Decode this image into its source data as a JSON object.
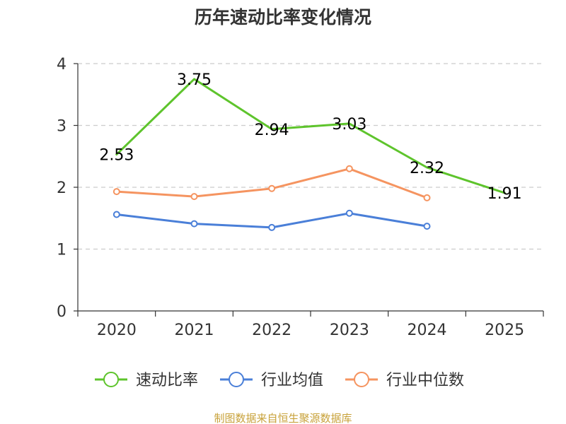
{
  "chart_data": {
    "type": "line",
    "title": "历年速动比率变化情况",
    "categories": [
      "2020",
      "2021",
      "2022",
      "2023",
      "2024",
      "2025"
    ],
    "ylim": [
      0,
      4
    ],
    "yticks": [
      0,
      1,
      2,
      3,
      4
    ],
    "grid": true,
    "legend_position": "bottom",
    "series": [
      {
        "name": "速动比率",
        "color": "#5ec42c",
        "values": [
          2.53,
          3.75,
          2.94,
          3.03,
          2.32,
          1.91
        ],
        "labels": [
          "2.53",
          "3.75",
          "2.94",
          "3.03",
          "2.32",
          "1.91"
        ],
        "show_labels": true,
        "markers": false
      },
      {
        "name": "行业均值",
        "color": "#4a7fd8",
        "values": [
          1.56,
          1.41,
          1.35,
          1.58,
          1.37,
          null
        ],
        "show_labels": false,
        "markers": true
      },
      {
        "name": "行业中位数",
        "color": "#f59460",
        "values": [
          1.93,
          1.85,
          1.98,
          2.3,
          1.83,
          null
        ],
        "show_labels": false,
        "markers": true
      }
    ]
  },
  "footer": {
    "source": "制图数据来自恒生聚源数据库"
  }
}
